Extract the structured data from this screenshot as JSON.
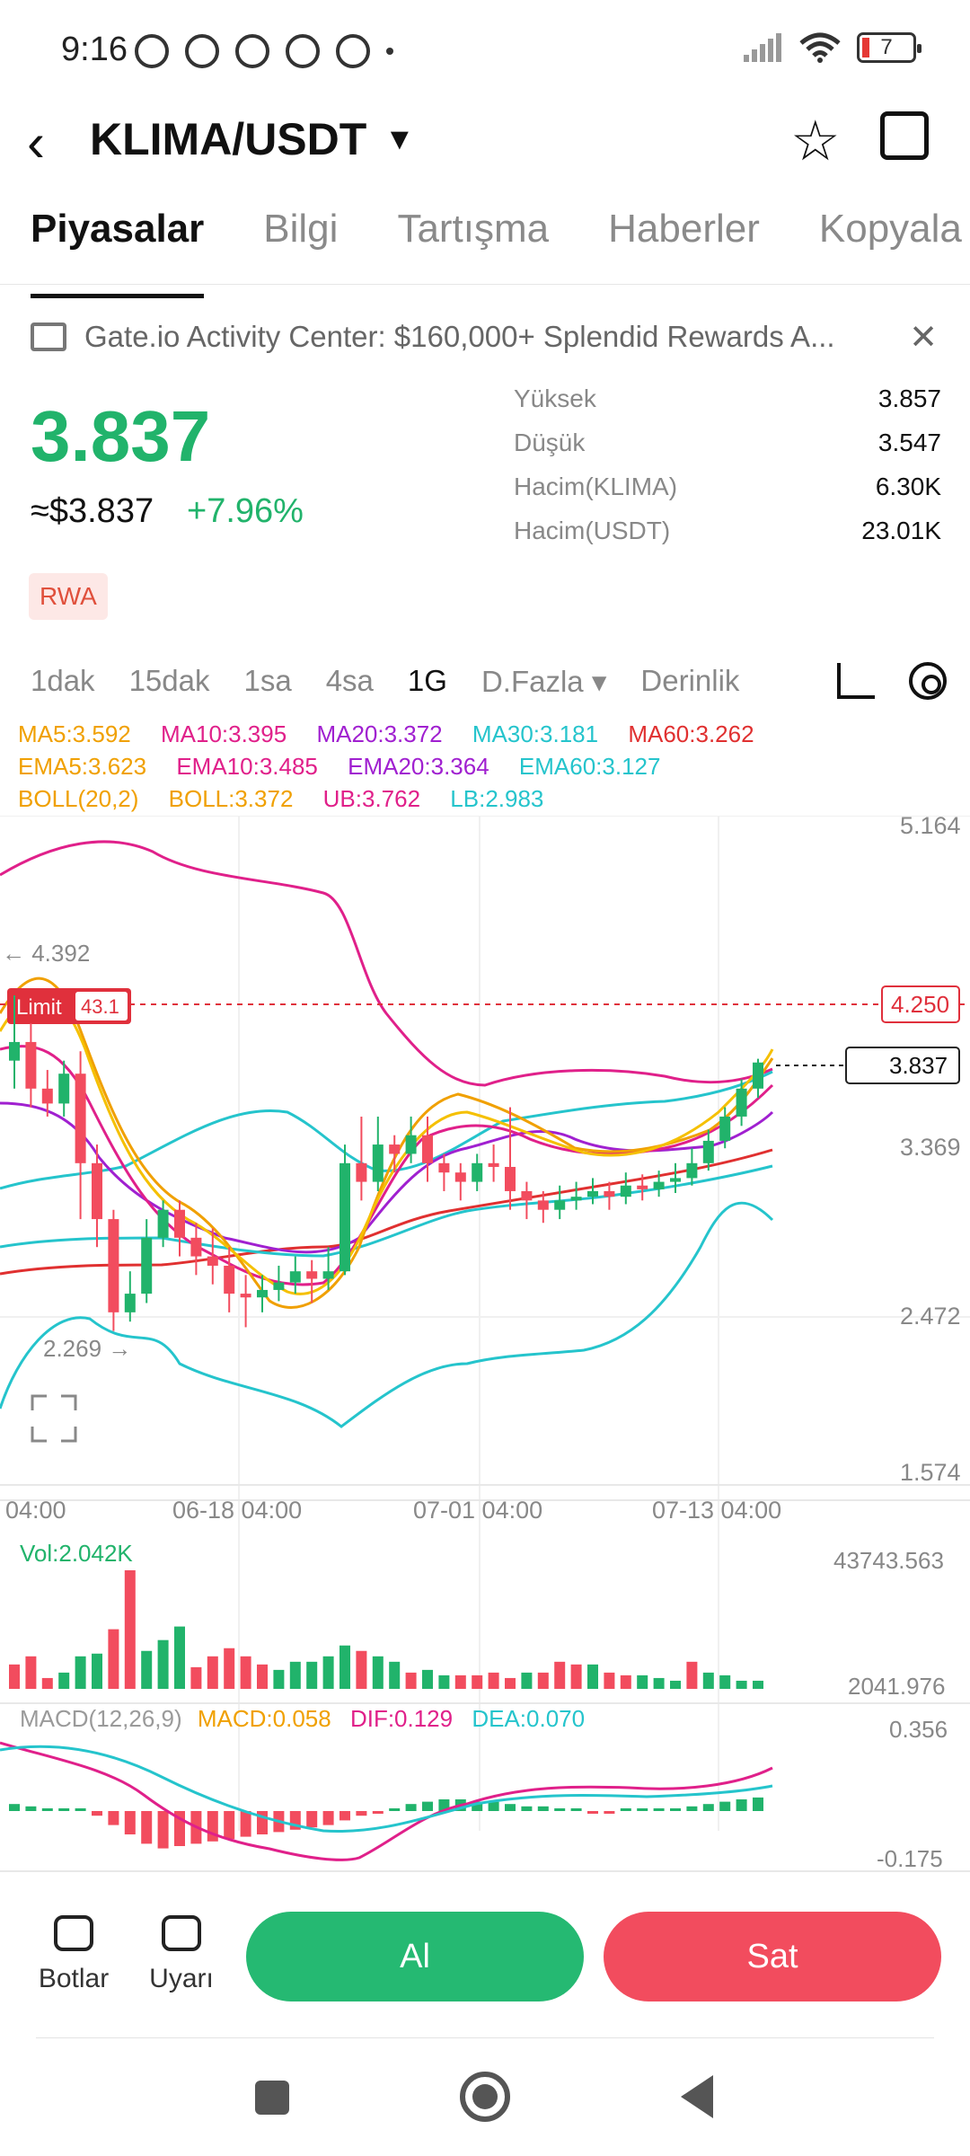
{
  "status_bar": {
    "time": "9:16",
    "battery": "7"
  },
  "header": {
    "pair": "KLIMA/USDT"
  },
  "tabs": [
    "Piyasalar",
    "Bilgi",
    "Tartışma",
    "Haberler",
    "Kopyala"
  ],
  "banner": {
    "text": "Gate.io Activity Center: $160,000+ Splendid Rewards A..."
  },
  "price": {
    "last": "3.837",
    "approx": "≈$3.837",
    "change": "+7.96%",
    "tag": "RWA"
  },
  "stats": [
    {
      "k": "Yüksek",
      "v": "3.857"
    },
    {
      "k": "Düşük",
      "v": "3.547"
    },
    {
      "k": "Hacim(KLIMA)",
      "v": "6.30K"
    },
    {
      "k": "Hacim(USDT)",
      "v": "23.01K"
    }
  ],
  "timeframes": [
    "1dak",
    "15dak",
    "1sa",
    "4sa",
    "1G",
    "D.Fazla ▾",
    "Derinlik"
  ],
  "selected_timeframe": "1G",
  "indicators": {
    "row1": [
      {
        "t": "MA5:3.592",
        "c": "#f0a000"
      },
      {
        "t": "MA10:3.395",
        "c": "#e0208a"
      },
      {
        "t": "MA20:3.372",
        "c": "#a020d0"
      },
      {
        "t": "MA30:3.181",
        "c": "#25c4cc"
      },
      {
        "t": "MA60:3.262",
        "c": "#e03030"
      }
    ],
    "row2": [
      {
        "t": "EMA5:3.623",
        "c": "#f0a000"
      },
      {
        "t": "EMA10:3.485",
        "c": "#e0208a"
      },
      {
        "t": "EMA20:3.364",
        "c": "#a020d0"
      },
      {
        "t": "EMA60:3.127",
        "c": "#25c4cc"
      }
    ],
    "row3": [
      {
        "t": "BOLL(20,2)",
        "c": "#f0a000"
      },
      {
        "t": "BOLL:3.372",
        "c": "#f0a000"
      },
      {
        "t": "UB:3.762",
        "c": "#e0208a"
      },
      {
        "t": "LB:2.983",
        "c": "#25c4cc"
      }
    ]
  },
  "chart_labels": {
    "y_axis": [
      "5.164",
      "3.369",
      "2.472",
      "1.574"
    ],
    "x_axis": [
      "04:00",
      "06-18 04:00",
      "07-01 04:00",
      "07-13 04:00"
    ],
    "limit_tag": "Limit",
    "limit_value": "43.1",
    "limit_price": "4.250",
    "current_price": "3.837",
    "high_marker": "← 4.392",
    "low_marker": "2.269 →",
    "vol_label": "Vol:2.042K",
    "vol_max": "43743.563",
    "vol_min": "2041.976",
    "macd_labels": [
      {
        "t": "MACD(12,26,9)",
        "c": "#9a9a9a"
      },
      {
        "t": "MACD:0.058",
        "c": "#f0a000"
      },
      {
        "t": "DIF:0.129",
        "c": "#e0208a"
      },
      {
        "t": "DEA:0.070",
        "c": "#25c4cc"
      }
    ],
    "macd_max": "0.356",
    "macd_min": "-0.175"
  },
  "colors": {
    "up": "#21b36b",
    "down": "#f24c5e",
    "limit": "#e0303c"
  },
  "chart_data": {
    "type": "candlestick",
    "price_range": [
      1.574,
      5.164
    ],
    "x_ticks": [
      "04:00",
      "06-18 04:00",
      "07-01 04:00",
      "07-13 04:00"
    ],
    "candles": [
      [
        3.85,
        3.95,
        4.2,
        3.7
      ],
      [
        3.95,
        3.7,
        4.05,
        3.6
      ],
      [
        3.7,
        3.62,
        3.8,
        3.55
      ],
      [
        3.62,
        3.78,
        3.85,
        3.55
      ],
      [
        3.78,
        3.3,
        3.9,
        3.0
      ],
      [
        3.3,
        3.0,
        3.4,
        2.85
      ],
      [
        3.0,
        2.5,
        3.05,
        2.4
      ],
      [
        2.5,
        2.6,
        2.72,
        2.45
      ],
      [
        2.6,
        2.9,
        3.0,
        2.55
      ],
      [
        2.9,
        3.05,
        3.1,
        2.85
      ],
      [
        3.05,
        2.9,
        3.1,
        2.8
      ],
      [
        2.9,
        2.8,
        2.98,
        2.7
      ],
      [
        2.8,
        2.75,
        2.95,
        2.65
      ],
      [
        2.75,
        2.6,
        2.85,
        2.5
      ],
      [
        2.6,
        2.58,
        2.7,
        2.42
      ],
      [
        2.58,
        2.62,
        2.7,
        2.5
      ],
      [
        2.62,
        2.66,
        2.75,
        2.56
      ],
      [
        2.66,
        2.72,
        2.8,
        2.6
      ],
      [
        2.72,
        2.68,
        2.78,
        2.55
      ],
      [
        2.68,
        2.72,
        2.85,
        2.62
      ],
      [
        2.72,
        3.3,
        3.4,
        2.7
      ],
      [
        3.3,
        3.2,
        3.55,
        3.1
      ],
      [
        3.2,
        3.4,
        3.55,
        3.15
      ],
      [
        3.4,
        3.35,
        3.45,
        3.25
      ],
      [
        3.35,
        3.45,
        3.55,
        3.3
      ],
      [
        3.45,
        3.3,
        3.55,
        3.2
      ],
      [
        3.3,
        3.25,
        3.35,
        3.15
      ],
      [
        3.25,
        3.2,
        3.3,
        3.1
      ],
      [
        3.2,
        3.3,
        3.35,
        3.15
      ],
      [
        3.3,
        3.28,
        3.4,
        3.2
      ],
      [
        3.28,
        3.15,
        3.6,
        3.05
      ],
      [
        3.15,
        3.1,
        3.2,
        3.0
      ],
      [
        3.1,
        3.05,
        3.15,
        2.98
      ],
      [
        3.05,
        3.1,
        3.18,
        3.0
      ],
      [
        3.1,
        3.12,
        3.2,
        3.05
      ],
      [
        3.12,
        3.15,
        3.22,
        3.08
      ],
      [
        3.15,
        3.12,
        3.2,
        3.05
      ],
      [
        3.12,
        3.18,
        3.25,
        3.08
      ],
      [
        3.18,
        3.16,
        3.24,
        3.1
      ],
      [
        3.16,
        3.2,
        3.26,
        3.12
      ],
      [
        3.2,
        3.22,
        3.3,
        3.14
      ],
      [
        3.22,
        3.3,
        3.38,
        3.18
      ],
      [
        3.3,
        3.42,
        3.48,
        3.26
      ],
      [
        3.42,
        3.55,
        3.6,
        3.38
      ],
      [
        3.55,
        3.7,
        3.75,
        3.5
      ],
      [
        3.7,
        3.84,
        3.86,
        3.65
      ]
    ],
    "volume": {
      "range": [
        2041.976,
        43743.563
      ],
      "values": [
        [
          9000,
          0
        ],
        [
          12000,
          0
        ],
        [
          4000,
          0
        ],
        [
          6000,
          1
        ],
        [
          12000,
          1
        ],
        [
          13000,
          1
        ],
        [
          22000,
          0
        ],
        [
          43743,
          0
        ],
        [
          14000,
          1
        ],
        [
          18000,
          1
        ],
        [
          23000,
          1
        ],
        [
          8000,
          0
        ],
        [
          12000,
          0
        ],
        [
          15000,
          0
        ],
        [
          12000,
          0
        ],
        [
          9000,
          0
        ],
        [
          7000,
          1
        ],
        [
          10000,
          1
        ],
        [
          10000,
          1
        ],
        [
          12000,
          1
        ],
        [
          16000,
          1
        ],
        [
          14000,
          0
        ],
        [
          12000,
          1
        ],
        [
          10000,
          1
        ],
        [
          6000,
          0
        ],
        [
          7000,
          1
        ],
        [
          5000,
          1
        ],
        [
          5000,
          0
        ],
        [
          5000,
          0
        ],
        [
          6000,
          0
        ],
        [
          4000,
          0
        ],
        [
          6000,
          1
        ],
        [
          6000,
          0
        ],
        [
          10000,
          0
        ],
        [
          9000,
          0
        ],
        [
          9000,
          1
        ],
        [
          6000,
          0
        ],
        [
          5000,
          0
        ],
        [
          5000,
          1
        ],
        [
          4000,
          1
        ],
        [
          3000,
          1
        ],
        [
          10000,
          0
        ],
        [
          6000,
          1
        ],
        [
          5000,
          1
        ],
        [
          3000,
          1
        ],
        [
          3000,
          1
        ]
      ]
    },
    "macd": {
      "range": [
        -0.175,
        0.356
      ],
      "histogram": [
        0.03,
        0.02,
        0.01,
        0.01,
        0.0,
        -0.02,
        -0.06,
        -0.1,
        -0.14,
        -0.16,
        -0.15,
        -0.14,
        -0.13,
        -0.12,
        -0.11,
        -0.1,
        -0.09,
        -0.08,
        -0.07,
        -0.06,
        -0.04,
        -0.02,
        -0.01,
        0.01,
        0.03,
        0.04,
        0.05,
        0.05,
        0.04,
        0.04,
        0.03,
        0.02,
        0.02,
        0.01,
        0.0,
        -0.01,
        -0.01,
        0.0,
        0.0,
        0.0,
        0.01,
        0.02,
        0.03,
        0.04,
        0.05,
        0.058
      ]
    }
  },
  "bottom_bar": {
    "bots": "Botlar",
    "alerts": "Uyarı",
    "buy": "Al",
    "sell": "Sat"
  }
}
